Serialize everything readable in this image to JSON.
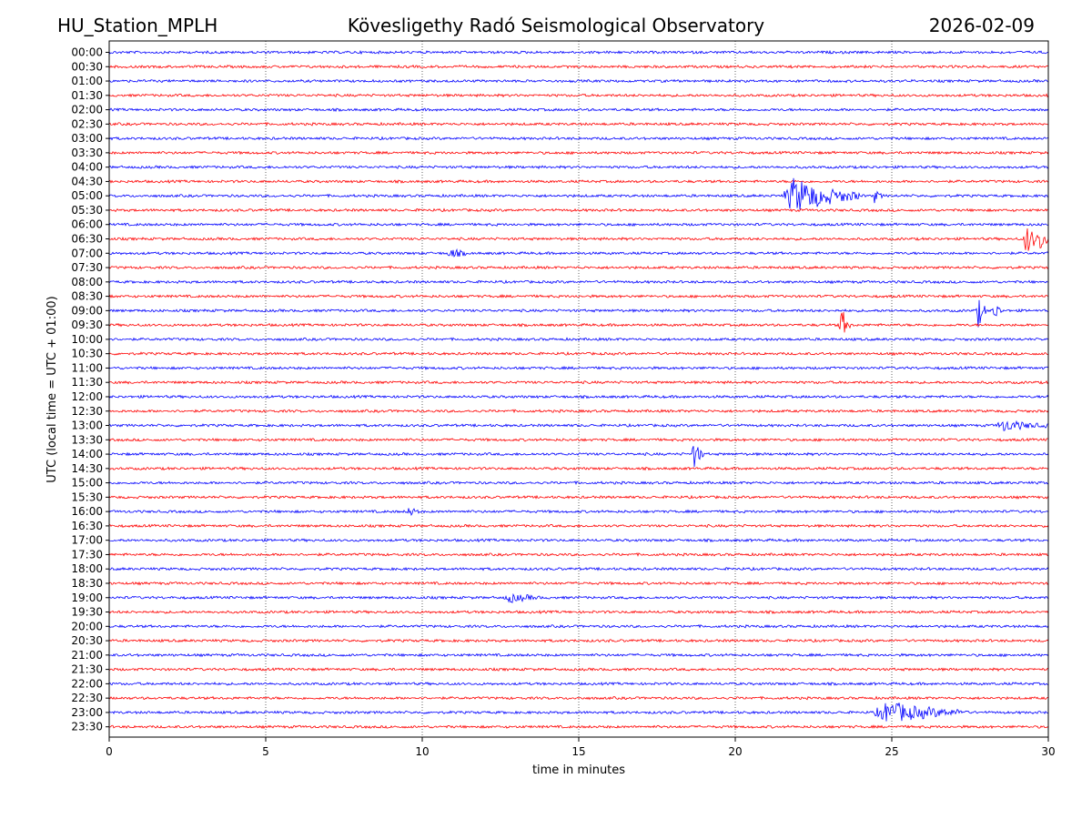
{
  "header": {
    "station": "HU_Station_MPLH",
    "observatory": "Kövesligethy Radó Seismological Observatory",
    "date": "2026-02-09"
  },
  "chart_data": {
    "type": "line",
    "title": "Kövesligethy Radó Seismological Observatory",
    "xlabel": "time in minutes",
    "ylabel": "UTC (local time = UTC + 01:00)",
    "xlim": [
      0,
      30
    ],
    "x_ticks": [
      0,
      5,
      10,
      15,
      20,
      25,
      30
    ],
    "vertical_gridlines_at": [
      5,
      10,
      15,
      20,
      25
    ],
    "rows": [
      "00:00",
      "00:30",
      "01:00",
      "01:30",
      "02:00",
      "02:30",
      "03:00",
      "03:30",
      "04:00",
      "04:30",
      "05:00",
      "05:30",
      "06:00",
      "06:30",
      "07:00",
      "07:30",
      "08:00",
      "08:30",
      "09:00",
      "09:30",
      "10:00",
      "10:30",
      "11:00",
      "11:30",
      "12:00",
      "12:30",
      "13:00",
      "13:30",
      "14:00",
      "14:30",
      "15:00",
      "15:30",
      "16:00",
      "16:30",
      "17:00",
      "17:30",
      "18:00",
      "18:30",
      "19:00",
      "19:30",
      "20:00",
      "20:30",
      "21:00",
      "21:30",
      "22:00",
      "22:30",
      "23:00",
      "23:30"
    ],
    "series_colors": [
      "#0000ff",
      "#ff0000"
    ],
    "events": [
      {
        "row": "05:00",
        "start_min": 21.5,
        "peak_amp": 1.0,
        "duration_min": 2.5
      },
      {
        "row": "05:00",
        "start_min": 24.4,
        "peak_amp": 0.4,
        "duration_min": 0.3
      },
      {
        "row": "06:30",
        "start_min": 29.2,
        "peak_amp": 1.0,
        "duration_min": 0.6
      },
      {
        "row": "06:30",
        "start_min": 29.7,
        "peak_amp": 0.9,
        "duration_min": 0.3
      },
      {
        "row": "07:00",
        "start_min": 10.8,
        "peak_amp": 0.3,
        "duration_min": 0.6
      },
      {
        "row": "09:00",
        "start_min": 27.7,
        "peak_amp": 1.0,
        "duration_min": 0.3
      },
      {
        "row": "09:00",
        "start_min": 28.2,
        "peak_amp": 0.7,
        "duration_min": 0.3
      },
      {
        "row": "09:30",
        "start_min": 23.3,
        "peak_amp": 1.0,
        "duration_min": 0.4
      },
      {
        "row": "13:00",
        "start_min": 28.3,
        "peak_amp": 0.3,
        "duration_min": 1.7
      },
      {
        "row": "14:00",
        "start_min": 18.6,
        "peak_amp": 0.9,
        "duration_min": 0.4
      },
      {
        "row": "16:00",
        "start_min": 9.5,
        "peak_amp": 0.3,
        "duration_min": 0.4
      },
      {
        "row": "19:00",
        "start_min": 12.6,
        "peak_amp": 0.25,
        "duration_min": 1.2
      },
      {
        "row": "23:00",
        "start_min": 24.4,
        "peak_amp": 0.6,
        "duration_min": 3.0
      }
    ]
  }
}
